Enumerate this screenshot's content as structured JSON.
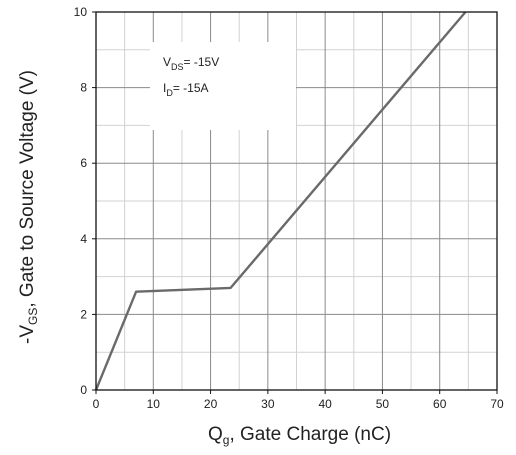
{
  "chart_data": {
    "type": "line",
    "title": "",
    "xlabel": {
      "main": "Q",
      "sub": "g",
      "rest": ", Gate Charge (nC)"
    },
    "ylabel": {
      "main": "-V",
      "sub": "GS",
      "rest": ", Gate to Source Voltage (V)"
    },
    "xlim": [
      0,
      70
    ],
    "ylim": [
      0,
      10
    ],
    "x_ticks": [
      0,
      10,
      20,
      30,
      40,
      50,
      60,
      70
    ],
    "x_tick_labels": [
      "0",
      "10",
      "20",
      "30",
      "40",
      "50",
      "60",
      "70"
    ],
    "y_ticks": [
      0,
      2,
      4,
      6,
      8,
      10
    ],
    "y_tick_labels": [
      "0",
      "2",
      "4",
      "6",
      "8",
      "10"
    ],
    "x_minor_grid": [
      5,
      15,
      25,
      35,
      45,
      55,
      65
    ],
    "y_minor_grid": [
      1,
      3,
      5,
      7,
      9
    ],
    "grid": true,
    "series": [
      {
        "x": [
          0,
          7,
          23.5,
          64.5
        ],
        "y": [
          0,
          2.6,
          2.7,
          10
        ]
      }
    ],
    "annotations": [
      {
        "main": "V",
        "sub": "DS",
        "rest": "= -15V"
      },
      {
        "main": "I",
        "sub": "D",
        "rest": "= -15A"
      }
    ],
    "colors": {
      "line": "#6a6a6a",
      "major_grid": "#8a8a8a",
      "minor_grid": "#d2d2d2",
      "frame": "#111111"
    }
  }
}
